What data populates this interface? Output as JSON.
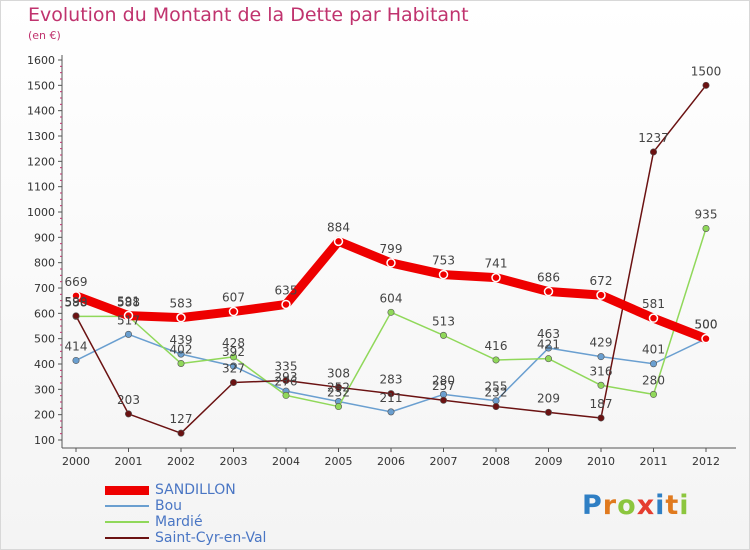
{
  "title": "Evolution du Montant de la Dette par Habitant",
  "subtitle": "(en €)",
  "logo": {
    "letters": [
      {
        "ch": "P",
        "color": "#2f7fc4"
      },
      {
        "ch": "r",
        "color": "#e07a1f"
      },
      {
        "ch": "o",
        "color": "#8cc63e"
      },
      {
        "ch": "x",
        "color": "#e53d2f"
      },
      {
        "ch": "i",
        "color": "#2f7fc4"
      },
      {
        "ch": "t",
        "color": "#e07a1f"
      },
      {
        "ch": "i",
        "color": "#8cc63e"
      }
    ]
  },
  "chart_data": {
    "type": "line",
    "x": [
      "2000",
      "2001",
      "2002",
      "2003",
      "2004",
      "2005",
      "2006",
      "2007",
      "2008",
      "2009",
      "2010",
      "2011",
      "2012"
    ],
    "yticks": [
      100,
      200,
      300,
      400,
      500,
      600,
      700,
      800,
      900,
      1000,
      1100,
      1200,
      1300,
      1400,
      1500,
      1600
    ],
    "ylim": [
      100,
      1600
    ],
    "grid": false,
    "legend_position": "bottom-left",
    "series": [
      {
        "name": "SANDILLON",
        "color": "#ee0000",
        "width": 9,
        "values": [
          669,
          591,
          583,
          607,
          635,
          884,
          799,
          753,
          741,
          686,
          672,
          581,
          500
        ],
        "labels": [
          "669",
          "591",
          "583",
          "607",
          "635",
          "884",
          "799",
          "753",
          "741",
          "686",
          "672",
          "581",
          "500"
        ]
      },
      {
        "name": "Bou",
        "color": "#6a9fd0",
        "width": 1.5,
        "values": [
          414,
          517,
          439,
          392,
          293,
          252,
          211,
          280,
          255,
          463,
          429,
          401,
          500
        ],
        "labels": [
          "414",
          "517",
          "439",
          "392",
          "293",
          "252",
          "211",
          "280",
          "255",
          "463",
          "429",
          "401",
          "500"
        ]
      },
      {
        "name": "Mardié",
        "color": "#90d85a",
        "width": 1.5,
        "values": [
          588,
          588,
          402,
          428,
          276,
          232,
          604,
          513,
          416,
          421,
          316,
          280,
          935
        ],
        "labels": [
          "588",
          "588",
          "402",
          "428",
          "276",
          "232",
          "604",
          "513",
          "416",
          "421",
          "316",
          "280",
          "935"
        ]
      },
      {
        "name": "Saint-Cyr-en-Val",
        "color": "#6b1212",
        "width": 1.5,
        "values": [
          590,
          203,
          127,
          327,
          335,
          308,
          283,
          257,
          232,
          209,
          187,
          1237,
          1500
        ],
        "labels": [
          "590",
          "203",
          "127",
          "327",
          "335",
          "308",
          "283",
          "257",
          "232",
          "209",
          "187",
          "1237",
          "1500"
        ]
      }
    ]
  }
}
